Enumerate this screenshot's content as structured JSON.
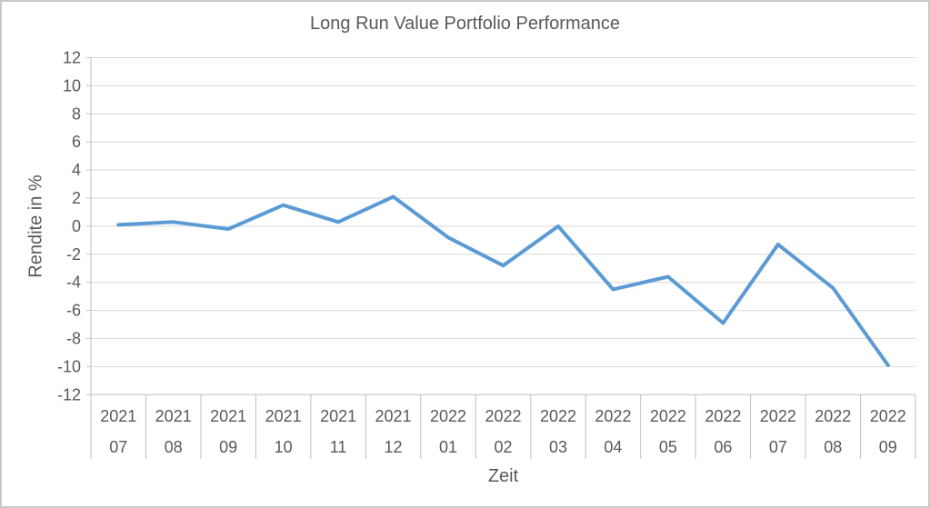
{
  "window": {
    "background": "#ffffff",
    "border_color": "#c9c9c9"
  },
  "chart_data": {
    "type": "line",
    "title": "Long Run Value Portfolio Performance",
    "xlabel": "Zeit",
    "ylabel": "Rendite in %",
    "categories": [
      {
        "year": "2021",
        "month": "07"
      },
      {
        "year": "2021",
        "month": "08"
      },
      {
        "year": "2021",
        "month": "09"
      },
      {
        "year": "2021",
        "month": "10"
      },
      {
        "year": "2021",
        "month": "11"
      },
      {
        "year": "2021",
        "month": "12"
      },
      {
        "year": "2022",
        "month": "01"
      },
      {
        "year": "2022",
        "month": "02"
      },
      {
        "year": "2022",
        "month": "03"
      },
      {
        "year": "2022",
        "month": "04"
      },
      {
        "year": "2022",
        "month": "05"
      },
      {
        "year": "2022",
        "month": "06"
      },
      {
        "year": "2022",
        "month": "07"
      },
      {
        "year": "2022",
        "month": "08"
      },
      {
        "year": "2022",
        "month": "09"
      }
    ],
    "values": [
      0.1,
      0.3,
      -0.2,
      1.5,
      0.3,
      2.1,
      -0.8,
      -2.8,
      0.0,
      -4.5,
      -3.6,
      -6.9,
      -1.3,
      -4.4,
      -9.9
    ],
    "ylim": [
      -12,
      12
    ],
    "yticks": [
      12,
      10,
      8,
      6,
      4,
      2,
      0,
      -2,
      -4,
      -6,
      -8,
      -10,
      -12
    ],
    "grid": true,
    "legend": false,
    "line_color": "#5B9BD5",
    "gridline_color": "#D9D9D9",
    "axis_color": "#BFBFBF",
    "text_color": "#595959"
  }
}
